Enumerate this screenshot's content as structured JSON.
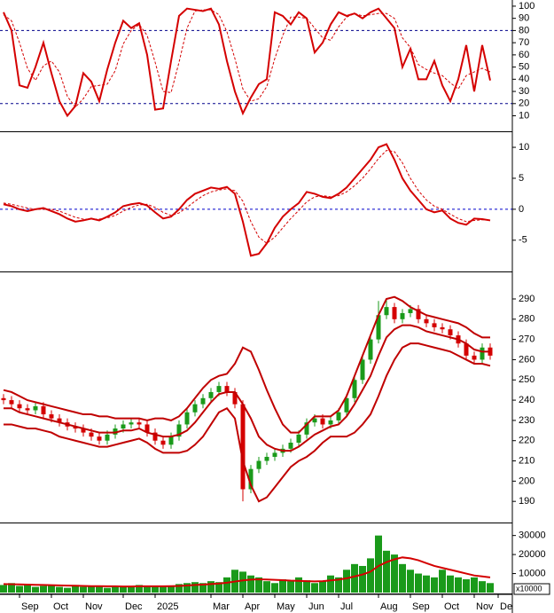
{
  "chart_data": [
    {
      "type": "line",
      "ylim": [
        -2,
        103.6
      ],
      "yticks": [
        10,
        20,
        30,
        40,
        50,
        60,
        70,
        80,
        90,
        100
      ],
      "levels": [
        20,
        80
      ],
      "level_color": "#00008b",
      "series": [
        {
          "color": "#d40000",
          "dashed": false,
          "values": [
            95,
            80,
            35,
            33,
            50,
            70,
            45,
            22,
            10,
            18,
            45,
            38,
            22,
            48,
            70,
            88,
            82,
            86,
            60,
            15,
            16,
            55,
            92,
            98,
            97,
            96,
            98,
            85,
            55,
            30,
            12,
            25,
            36,
            40,
            95,
            92,
            85,
            95,
            90,
            62,
            70,
            85,
            95,
            92,
            94,
            90,
            95,
            98,
            90,
            82,
            50,
            65,
            40,
            40,
            55,
            35,
            22,
            40,
            68,
            30,
            68,
            39,
            null
          ]
        },
        {
          "color": "#d40000",
          "dashed": true,
          "values": [
            93,
            88,
            70,
            49,
            39,
            51,
            55,
            46,
            26,
            17,
            24,
            34,
            35,
            36,
            47,
            69,
            80,
            85,
            76,
            54,
            30,
            29,
            54,
            82,
            96,
            97,
            97,
            93,
            79,
            57,
            32,
            22,
            24,
            34,
            57,
            76,
            91,
            91,
            90,
            82,
            74,
            72,
            83,
            91,
            94,
            92,
            93,
            94,
            94,
            90,
            74,
            66,
            52,
            48,
            45,
            43,
            37,
            32,
            43,
            46,
            49,
            46,
            null
          ]
        }
      ]
    },
    {
      "type": "line",
      "ylim": [
        -9.9,
        12.3
      ],
      "yticks": [
        -5,
        0,
        5,
        10
      ],
      "levels": [
        0
      ],
      "level_color": "#0000cc",
      "series": [
        {
          "color": "#d40000",
          "dashed": false,
          "values": [
            0.8,
            0.5,
            0,
            -0.3,
            0,
            0.2,
            -0.3,
            -0.8,
            -1.5,
            -2,
            -1.8,
            -1.5,
            -1.8,
            -1.2,
            -0.5,
            0.5,
            0.8,
            1,
            0.6,
            -0.5,
            -1.5,
            -1.2,
            0,
            1.5,
            2.5,
            3,
            3.5,
            3.3,
            3.6,
            2.5,
            -2,
            -7.5,
            -7.2,
            -5.5,
            -3,
            -1.2,
            0,
            1,
            2.8,
            2.5,
            2,
            1.8,
            2.5,
            3.5,
            5,
            6.5,
            8,
            10,
            10.5,
            8,
            5,
            3,
            1.5,
            0,
            -0.5,
            -0.2,
            -1.5,
            -2.2,
            -2.5,
            -1.5,
            -1.6,
            -1.8,
            null
          ]
        },
        {
          "color": "#d40000",
          "dashed": true,
          "values": [
            1,
            0.8,
            0.5,
            0.2,
            0,
            0,
            0,
            -0.3,
            -0.8,
            -1.3,
            -1.6,
            -1.6,
            -1.6,
            -1.4,
            -1,
            -0.3,
            0.3,
            0.7,
            0.8,
            0.3,
            -0.5,
            -1,
            -0.6,
            0.3,
            1.3,
            2.2,
            2.8,
            3.1,
            3.3,
            3,
            1.3,
            -2,
            -4.5,
            -5.5,
            -4.5,
            -3,
            -1.5,
            -0.2,
            1.2,
            2,
            2.2,
            2,
            2.2,
            2.8,
            3.8,
            5,
            6.5,
            8.2,
            9.5,
            9.3,
            7.5,
            5,
            3,
            1.5,
            0.5,
            0,
            -0.8,
            -1.5,
            -2,
            -1.8,
            -1.7,
            -1.7,
            null
          ]
        }
      ]
    },
    {
      "type": "candlestick",
      "ylim": [
        180,
        302.7
      ],
      "yticks": [
        190,
        200,
        210,
        220,
        230,
        240,
        250,
        260,
        270,
        280,
        290
      ],
      "up_color": "#1a9a1a",
      "down_color": "#d40000",
      "open": [
        241,
        240,
        238,
        236,
        235,
        237,
        233,
        231,
        229,
        227,
        226,
        224,
        222,
        220,
        223,
        226,
        228,
        229,
        228,
        224,
        220,
        218,
        222,
        228,
        234,
        238,
        241,
        244,
        247,
        244,
        238,
        196,
        206,
        210,
        212,
        214,
        216,
        219,
        223,
        229,
        231,
        228,
        230,
        234,
        241,
        250,
        260,
        270,
        282,
        286,
        280,
        283,
        285,
        280,
        278,
        276,
        275,
        272,
        268,
        262,
        260,
        266,
        null
      ],
      "high": [
        243,
        242,
        240,
        238,
        239,
        239,
        235,
        233,
        231,
        229,
        228,
        226,
        224,
        225,
        228,
        230,
        231,
        231,
        230,
        226,
        222,
        224,
        230,
        236,
        240,
        243,
        246,
        249,
        249,
        246,
        240,
        208,
        212,
        214,
        216,
        218,
        221,
        225,
        231,
        233,
        233,
        232,
        236,
        243,
        252,
        262,
        272,
        289,
        290,
        288,
        285,
        287,
        287,
        282,
        280,
        278,
        277,
        274,
        270,
        264,
        268,
        268,
        null
      ],
      "low": [
        238,
        236,
        234,
        233,
        233,
        231,
        229,
        227,
        225,
        224,
        222,
        220,
        218,
        218,
        221,
        224,
        226,
        226,
        222,
        218,
        216,
        216,
        220,
        226,
        232,
        236,
        239,
        242,
        242,
        236,
        190,
        194,
        204,
        208,
        210,
        212,
        214,
        217,
        221,
        227,
        226,
        226,
        228,
        232,
        239,
        248,
        258,
        268,
        280,
        278,
        278,
        281,
        278,
        276,
        274,
        273,
        270,
        266,
        260,
        258,
        258,
        260,
        null
      ],
      "close": [
        240,
        238,
        236,
        235,
        237,
        233,
        231,
        229,
        227,
        226,
        224,
        222,
        220,
        223,
        226,
        228,
        229,
        228,
        224,
        220,
        218,
        222,
        228,
        234,
        238,
        241,
        244,
        247,
        244,
        238,
        196,
        206,
        210,
        212,
        214,
        216,
        219,
        223,
        229,
        231,
        228,
        230,
        234,
        241,
        250,
        260,
        270,
        282,
        286,
        280,
        283,
        285,
        280,
        278,
        276,
        275,
        272,
        268,
        262,
        260,
        266,
        262,
        null
      ],
      "series": [
        {
          "color": "#c00000",
          "dashed": false,
          "values": [
            245,
            244,
            242,
            240,
            239,
            238,
            237,
            236,
            235,
            234,
            233,
            233,
            232,
            232,
            231,
            231,
            231,
            231,
            230,
            231,
            231,
            230,
            232,
            236,
            241,
            246,
            250,
            252,
            253,
            258,
            266,
            264,
            255,
            245,
            236,
            228,
            224,
            224,
            228,
            232,
            232,
            232,
            235,
            242,
            252,
            262,
            272,
            282,
            290,
            291,
            289,
            286,
            284,
            282,
            281,
            280,
            279,
            278,
            276,
            273,
            271,
            271,
            null
          ]
        },
        {
          "color": "#c00000",
          "dashed": false,
          "values": [
            236,
            236,
            234,
            233,
            232,
            231,
            230,
            229,
            228,
            227,
            226,
            225,
            224,
            224,
            224,
            225,
            225,
            226,
            224,
            223,
            222,
            222,
            223,
            225,
            229,
            234,
            239,
            243,
            244,
            244,
            238,
            231,
            222,
            218,
            216,
            215,
            215,
            217,
            220,
            223,
            225,
            227,
            228,
            232,
            238,
            245,
            252,
            262,
            271,
            275,
            277,
            277,
            276,
            274,
            273,
            272,
            271,
            270,
            268,
            265,
            264,
            264,
            null
          ]
        },
        {
          "color": "#c00000",
          "dashed": false,
          "values": [
            228,
            228,
            227,
            226,
            226,
            225,
            224,
            222,
            221,
            220,
            219,
            218,
            217,
            217,
            218,
            219,
            220,
            221,
            219,
            216,
            214,
            214,
            214,
            215,
            218,
            222,
            228,
            234,
            236,
            231,
            210,
            198,
            190,
            192,
            197,
            202,
            207,
            210,
            212,
            215,
            219,
            222,
            222,
            222,
            224,
            228,
            233,
            242,
            252,
            260,
            266,
            268,
            268,
            267,
            266,
            265,
            264,
            262,
            260,
            258,
            258,
            257,
            null
          ]
        }
      ]
    },
    {
      "type": "bar",
      "ylim": [
        0,
        35900
      ],
      "yticks": [
        10000,
        20000,
        30000
      ],
      "unit_label": "x10000",
      "color": "#1a9a1a",
      "categories": [
        null,
        null,
        "Sep",
        null,
        null,
        null,
        "Oct",
        null,
        null,
        null,
        "Nov",
        null,
        null,
        null,
        null,
        "Dec",
        null,
        null,
        null,
        "2025",
        null,
        null,
        null,
        null,
        null,
        null,
        "Mar",
        null,
        null,
        null,
        "Apr",
        null,
        null,
        null,
        "May",
        null,
        null,
        null,
        "Jun",
        null,
        null,
        null,
        "Jul",
        null,
        null,
        null,
        null,
        "Aug",
        null,
        null,
        null,
        "Sep",
        null,
        null,
        null,
        "Oct",
        null,
        null,
        null,
        "Nov",
        null,
        null,
        "De"
      ],
      "values": [
        4000,
        5000,
        3500,
        4500,
        3000,
        3500,
        4000,
        3000,
        2500,
        4000,
        3000,
        3500,
        3000,
        2500,
        3500,
        3000,
        3000,
        4000,
        3000,
        3500,
        3000,
        3500,
        4500,
        5000,
        5500,
        5000,
        6000,
        5500,
        8000,
        12000,
        11000,
        9000,
        8000,
        6000,
        5000,
        7000,
        6000,
        8000,
        6500,
        5000,
        6000,
        9000,
        8000,
        12000,
        15000,
        14000,
        18000,
        30000,
        22000,
        20000,
        15000,
        12000,
        10000,
        9000,
        8000,
        12000,
        9000,
        8000,
        7000,
        8000,
        6000,
        5000,
        null
      ],
      "series": [
        {
          "color": "#d40000",
          "dashed": false,
          "values": [
            4500,
            4400,
            4300,
            4200,
            4100,
            4000,
            3900,
            3800,
            3700,
            3600,
            3500,
            3400,
            3400,
            3300,
            3300,
            3200,
            3200,
            3300,
            3300,
            3300,
            3300,
            3400,
            3500,
            3700,
            4000,
            4200,
            4500,
            4800,
            5200,
            5800,
            6400,
            6800,
            7000,
            6900,
            6700,
            6500,
            6300,
            6200,
            6000,
            5900,
            6000,
            6400,
            6800,
            7500,
            8500,
            9500,
            11000,
            14000,
            16000,
            17500,
            18500,
            18000,
            17000,
            15500,
            14000,
            13000,
            12000,
            11000,
            10000,
            9000,
            8500,
            8000,
            null
          ]
        }
      ]
    }
  ]
}
